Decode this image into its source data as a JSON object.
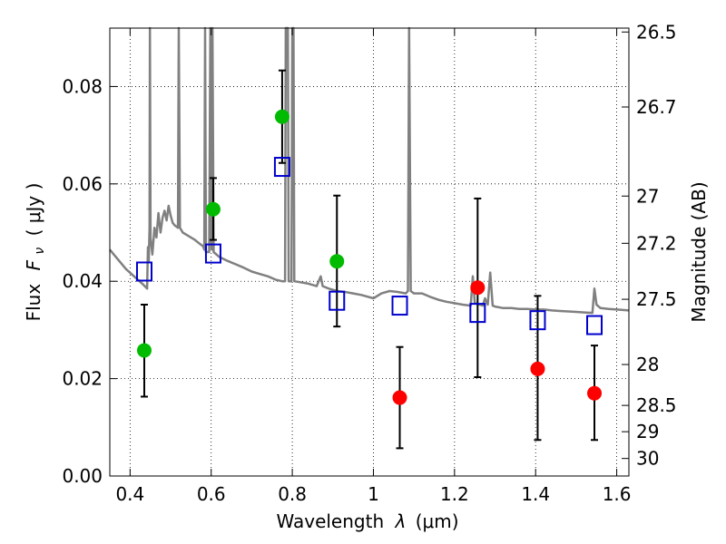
{
  "chart_data": {
    "type": "scatter",
    "xlabel_prefix": "Wavelength",
    "xlabel_symbol": "λ",
    "xlabel_unit": "(μm)",
    "ylabel_prefix": "Flux",
    "ylabel_symbol": "F",
    "ylabel_subscript": "ν",
    "ylabel_unit": "( μJy )",
    "y2label": "Magnitude (AB)",
    "xlim": [
      0.35,
      1.63
    ],
    "ylim": [
      0.0,
      0.092
    ],
    "x_ticks": [
      0.4,
      0.6,
      0.8,
      1.0,
      1.2,
      1.4,
      1.6
    ],
    "x_tick_labels": [
      "0.4",
      "0.6",
      "0.8",
      "1",
      "1.2",
      "1.4",
      "1.6"
    ],
    "y_ticks": [
      0.0,
      0.02,
      0.04,
      0.06,
      0.08
    ],
    "y_tick_labels": [
      "0.00",
      "0.02",
      "0.04",
      "0.06",
      "0.08"
    ],
    "magnitude_ticks": [
      {
        "label": "26.5",
        "flux": 0.0912
      },
      {
        "label": "26.7",
        "flux": 0.0758
      },
      {
        "label": "27",
        "flux": 0.0575
      },
      {
        "label": "27.2",
        "flux": 0.0478
      },
      {
        "label": "27.5",
        "flux": 0.0363
      },
      {
        "label": "28",
        "flux": 0.0229
      },
      {
        "label": "28.5",
        "flux": 0.0145
      },
      {
        "label": "29",
        "flux": 0.0091
      },
      {
        "label": "30",
        "flux": 0.0036
      }
    ],
    "grid": true,
    "colors": {
      "green": "#00bb00",
      "red": "#ff0000",
      "model_box": "#0000cc",
      "spectrum": "#808080",
      "errorbar": "#000000"
    },
    "series": [
      {
        "marker": "circle-green",
        "points": [
          {
            "x": 0.435,
            "y": 0.0258,
            "err_low": 0.0163,
            "err_high": 0.0352
          },
          {
            "x": 0.605,
            "y": 0.0548,
            "err_low": 0.0485,
            "err_high": 0.0612
          },
          {
            "x": 0.775,
            "y": 0.0738,
            "err_low": 0.0643,
            "err_high": 0.0833
          },
          {
            "x": 0.91,
            "y": 0.0441,
            "err_low": 0.0307,
            "err_high": 0.0576
          }
        ]
      },
      {
        "marker": "circle-red",
        "points": [
          {
            "x": 1.065,
            "y": 0.0161,
            "err_low": 0.0057,
            "err_high": 0.0265
          },
          {
            "x": 1.257,
            "y": 0.0387,
            "err_low": 0.0203,
            "err_high": 0.057
          },
          {
            "x": 1.405,
            "y": 0.022,
            "err_low": 0.0074,
            "err_high": 0.037
          },
          {
            "x": 1.545,
            "y": 0.017,
            "err_low": 0.0074,
            "err_high": 0.0268
          }
        ]
      },
      {
        "marker": "open-square-blue",
        "points": [
          {
            "x": 0.435,
            "y": 0.042
          },
          {
            "x": 0.605,
            "y": 0.0457
          },
          {
            "x": 0.775,
            "y": 0.0635
          },
          {
            "x": 0.91,
            "y": 0.036
          },
          {
            "x": 1.065,
            "y": 0.035
          },
          {
            "x": 1.257,
            "y": 0.0335
          },
          {
            "x": 1.405,
            "y": 0.032
          },
          {
            "x": 1.545,
            "y": 0.031
          }
        ]
      }
    ],
    "spectrum": [
      [
        0.35,
        0.0465
      ],
      [
        0.37,
        0.0445
      ],
      [
        0.39,
        0.0425
      ],
      [
        0.41,
        0.041
      ],
      [
        0.43,
        0.0395
      ],
      [
        0.442,
        0.0385
      ],
      [
        0.444,
        0.047
      ],
      [
        0.446,
        0.044
      ],
      [
        0.448,
        0.051
      ],
      [
        0.449,
        0.092
      ],
      [
        0.4505,
        0.049
      ],
      [
        0.455,
        0.0455
      ],
      [
        0.46,
        0.051
      ],
      [
        0.465,
        0.049
      ],
      [
        0.47,
        0.054
      ],
      [
        0.475,
        0.05
      ],
      [
        0.48,
        0.053
      ],
      [
        0.485,
        0.0545
      ],
      [
        0.49,
        0.0525
      ],
      [
        0.495,
        0.0555
      ],
      [
        0.5,
        0.0535
      ],
      [
        0.505,
        0.052
      ],
      [
        0.51,
        0.0515
      ],
      [
        0.518,
        0.051
      ],
      [
        0.52,
        0.092
      ],
      [
        0.523,
        0.051
      ],
      [
        0.53,
        0.05
      ],
      [
        0.54,
        0.0495
      ],
      [
        0.55,
        0.049
      ],
      [
        0.56,
        0.0485
      ],
      [
        0.57,
        0.0478
      ],
      [
        0.58,
        0.0472
      ],
      [
        0.583,
        0.0465
      ],
      [
        0.585,
        0.092
      ],
      [
        0.587,
        0.046
      ],
      [
        0.595,
        0.046
      ],
      [
        0.598,
        0.092
      ],
      [
        0.601,
        0.0465
      ],
      [
        0.603,
        0.092
      ],
      [
        0.606,
        0.046
      ],
      [
        0.62,
        0.045
      ],
      [
        0.64,
        0.0442
      ],
      [
        0.66,
        0.0435
      ],
      [
        0.68,
        0.0428
      ],
      [
        0.7,
        0.042
      ],
      [
        0.72,
        0.0415
      ],
      [
        0.74,
        0.041
      ],
      [
        0.76,
        0.0403
      ],
      [
        0.775,
        0.04
      ],
      [
        0.782,
        0.04
      ],
      [
        0.784,
        0.092
      ],
      [
        0.789,
        0.092
      ],
      [
        0.791,
        0.04
      ],
      [
        0.798,
        0.04
      ],
      [
        0.8,
        0.092
      ],
      [
        0.803,
        0.092
      ],
      [
        0.805,
        0.04
      ],
      [
        0.82,
        0.0398
      ],
      [
        0.84,
        0.0395
      ],
      [
        0.86,
        0.039
      ],
      [
        0.87,
        0.041
      ],
      [
        0.875,
        0.039
      ],
      [
        0.89,
        0.0385
      ],
      [
        0.91,
        0.038
      ],
      [
        0.93,
        0.0378
      ],
      [
        0.95,
        0.0375
      ],
      [
        0.97,
        0.0372
      ],
      [
        1.0,
        0.0365
      ],
      [
        1.02,
        0.0375
      ],
      [
        1.04,
        0.038
      ],
      [
        1.06,
        0.0378
      ],
      [
        1.08,
        0.0375
      ],
      [
        1.085,
        0.038
      ],
      [
        1.088,
        0.092
      ],
      [
        1.092,
        0.038
      ],
      [
        1.1,
        0.0375
      ],
      [
        1.12,
        0.0375
      ],
      [
        1.14,
        0.0368
      ],
      [
        1.16,
        0.0362
      ],
      [
        1.18,
        0.0358
      ],
      [
        1.2,
        0.0355
      ],
      [
        1.22,
        0.0352
      ],
      [
        1.24,
        0.035
      ],
      [
        1.245,
        0.041
      ],
      [
        1.25,
        0.0355
      ],
      [
        1.27,
        0.035
      ],
      [
        1.275,
        0.0365
      ],
      [
        1.282,
        0.0352
      ],
      [
        1.288,
        0.0418
      ],
      [
        1.294,
        0.035
      ],
      [
        1.3,
        0.0348
      ],
      [
        1.32,
        0.0345
      ],
      [
        1.34,
        0.0345
      ],
      [
        1.36,
        0.0343
      ],
      [
        1.38,
        0.0343
      ],
      [
        1.4,
        0.0342
      ],
      [
        1.42,
        0.0342
      ],
      [
        1.44,
        0.034
      ],
      [
        1.46,
        0.0339
      ],
      [
        1.48,
        0.0338
      ],
      [
        1.5,
        0.0337
      ],
      [
        1.52,
        0.0336
      ],
      [
        1.54,
        0.0335
      ],
      [
        1.545,
        0.0385
      ],
      [
        1.55,
        0.0352
      ],
      [
        1.56,
        0.0345
      ],
      [
        1.58,
        0.0343
      ],
      [
        1.6,
        0.0342
      ],
      [
        1.63,
        0.034
      ]
    ]
  }
}
